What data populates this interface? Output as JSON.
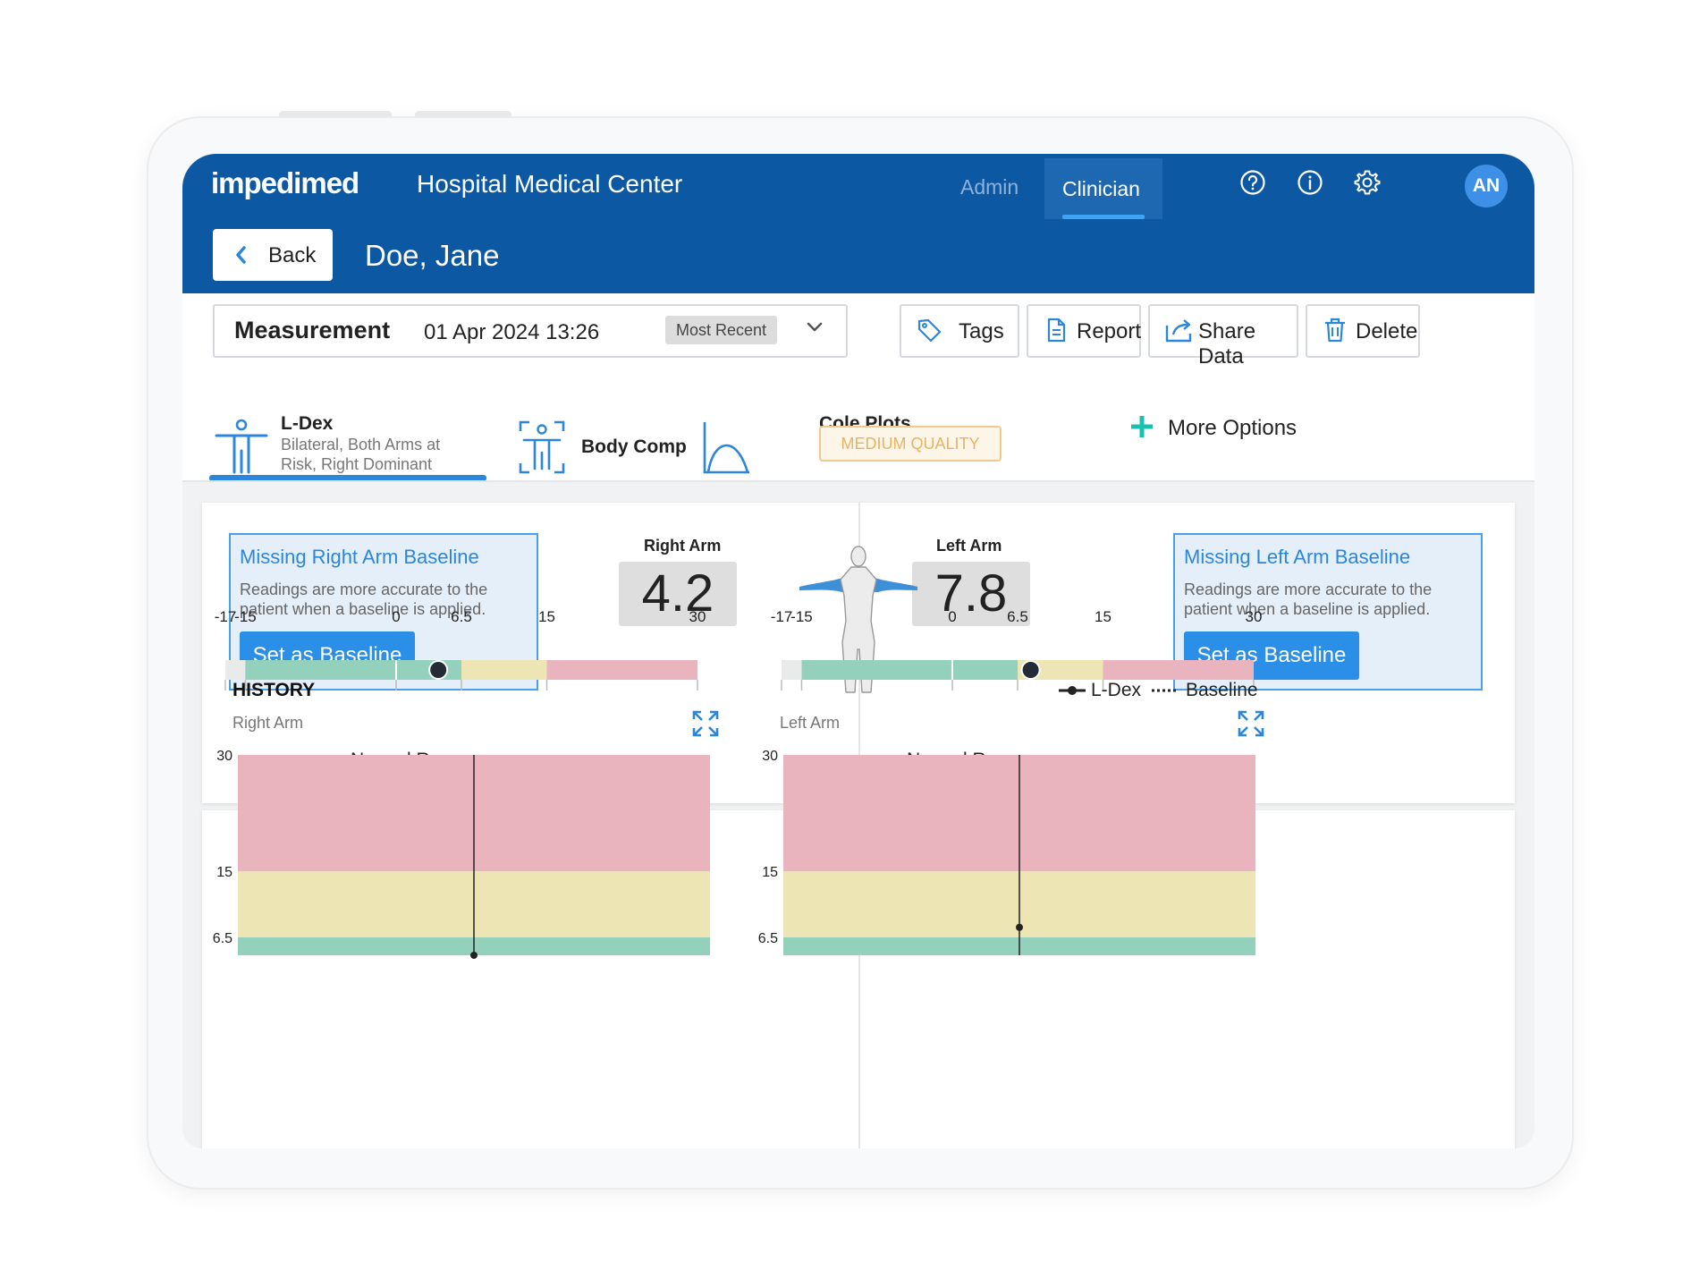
{
  "header": {
    "logo": "impedimed",
    "org_name": "Hospital Medical Center",
    "tabs": [
      {
        "label": "Admin",
        "active": false
      },
      {
        "label": "Clinician",
        "active": true
      }
    ],
    "icons": [
      "help-icon",
      "info-icon",
      "settings-icon"
    ],
    "avatar_initials": "AN"
  },
  "subheader": {
    "back_label": "Back",
    "patient_name": "Doe, Jane"
  },
  "measurement": {
    "label": "Measurement",
    "date": "01 Apr 2024 13:26",
    "badge": "Most Recent"
  },
  "actions": {
    "tags": "Tags",
    "report": "Report",
    "share": "Share Data",
    "delete": "Delete"
  },
  "tabs": {
    "ldex_title": "L-Dex",
    "ldex_sub_1": "Bilateral, Both Arms at",
    "ldex_sub_2": "Risk, Right Dominant",
    "bodycomp_title": "Body Comp",
    "cole_title": "Cole Plots",
    "cole_badge": "MEDIUM QUALITY",
    "more_options": "More Options"
  },
  "right_arm": {
    "notice_title": "Missing Right Arm Baseline",
    "notice_body": "Readings are more accurate to the patient when a baseline is applied.",
    "button": "Set as Baseline",
    "label": "Right Arm",
    "value": "4.2",
    "value_num": 4.2
  },
  "left_arm": {
    "notice_title": "Missing Left Arm Baseline",
    "notice_body": "Readings are more accurate to the patient when a baseline is applied.",
    "button": "Set as Baseline",
    "label": "Left Arm",
    "value": "7.8",
    "value_num": 7.8
  },
  "scale": {
    "ticks": [
      "-17",
      "-15",
      "0",
      "6.5",
      "15",
      "30"
    ],
    "normal_range_label": "Normal Range",
    "colors": {
      "grey": "#e9eaea",
      "green": "#94d1bd",
      "yellow": "#ede5b3",
      "red": "#eab4be"
    }
  },
  "history": {
    "title": "HISTORY",
    "legend_ldex": "L-Dex",
    "legend_baseline": "Baseline",
    "right_label": "Right Arm",
    "left_label": "Left Arm",
    "y_ticks": [
      "30",
      "15",
      "6.5"
    ]
  },
  "chart_data": [
    {
      "type": "line",
      "title": "Right Arm",
      "ylim": [
        4.2,
        30
      ],
      "bands": [
        {
          "from": 15,
          "to": 30,
          "color": "#eab4be"
        },
        {
          "from": 6.5,
          "to": 15,
          "color": "#ede5b3"
        },
        {
          "from": 4.2,
          "to": 6.5,
          "color": "#94d1bd"
        }
      ],
      "series": [
        {
          "name": "L-Dex",
          "values": [
            4.2
          ]
        }
      ]
    },
    {
      "type": "line",
      "title": "Left Arm",
      "ylim": [
        4.2,
        30
      ],
      "bands": [
        {
          "from": 15,
          "to": 30,
          "color": "#eab4be"
        },
        {
          "from": 6.5,
          "to": 15,
          "color": "#ede5b3"
        },
        {
          "from": 4.2,
          "to": 6.5,
          "color": "#94d1bd"
        }
      ],
      "series": [
        {
          "name": "L-Dex",
          "values": [
            7.8
          ]
        }
      ]
    }
  ]
}
